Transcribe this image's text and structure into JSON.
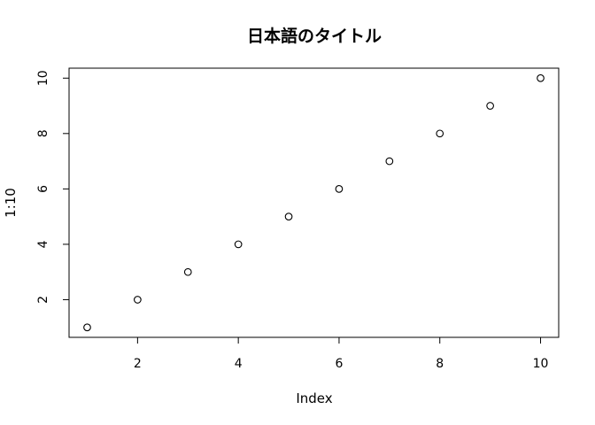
{
  "chart_data": {
    "type": "scatter",
    "title": "日本語のタイトル",
    "xlabel": "Index",
    "ylabel": "1:10",
    "xlim": [
      0.64,
      10.36
    ],
    "ylim": [
      0.64,
      10.36
    ],
    "xticks": [
      2,
      4,
      6,
      8,
      10
    ],
    "yticks": [
      2,
      4,
      6,
      8,
      10
    ],
    "grid": false,
    "marker": "open-circle",
    "x": [
      1,
      2,
      3,
      4,
      5,
      6,
      7,
      8,
      9,
      10
    ],
    "y": [
      1,
      2,
      3,
      4,
      5,
      6,
      7,
      8,
      9,
      10
    ]
  }
}
